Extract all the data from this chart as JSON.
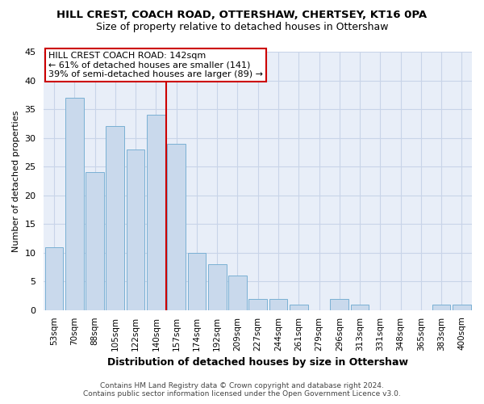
{
  "title": "HILL CREST, COACH ROAD, OTTERSHAW, CHERTSEY, KT16 0PA",
  "subtitle": "Size of property relative to detached houses in Ottershaw",
  "xlabel": "Distribution of detached houses by size in Ottershaw",
  "ylabel": "Number of detached properties",
  "bar_color": "#c9d9ec",
  "bar_edge_color": "#7ab0d4",
  "grid_color": "#c8d4e8",
  "background_color": "#e8eef8",
  "marker_line_color": "#cc0000",
  "annotation_box_color": "#ffffff",
  "annotation_border_color": "#cc0000",
  "categories": [
    "53sqm",
    "70sqm",
    "88sqm",
    "105sqm",
    "122sqm",
    "140sqm",
    "157sqm",
    "174sqm",
    "192sqm",
    "209sqm",
    "227sqm",
    "244sqm",
    "261sqm",
    "279sqm",
    "296sqm",
    "313sqm",
    "331sqm",
    "348sqm",
    "365sqm",
    "383sqm",
    "400sqm"
  ],
  "values": [
    11,
    37,
    24,
    32,
    28,
    34,
    29,
    10,
    8,
    6,
    2,
    2,
    1,
    0,
    2,
    1,
    0,
    0,
    0,
    1,
    1
  ],
  "ylim": [
    0,
    45
  ],
  "yticks": [
    0,
    5,
    10,
    15,
    20,
    25,
    30,
    35,
    40,
    45
  ],
  "marker_index": 5,
  "annotation_line1": "HILL CREST COACH ROAD: 142sqm",
  "annotation_line2": "← 61% of detached houses are smaller (141)",
  "annotation_line3": "39% of semi-detached houses are larger (89) →",
  "footer_line1": "Contains HM Land Registry data © Crown copyright and database right 2024.",
  "footer_line2": "Contains public sector information licensed under the Open Government Licence v3.0."
}
